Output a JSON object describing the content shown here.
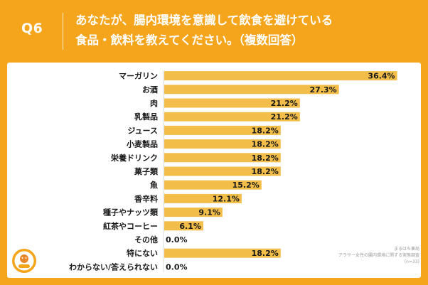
{
  "header": {
    "q_num": "Q6",
    "line1": "あなたが、腸内環境を意識して飲食を避けている",
    "line2": "食品・飲料を教えてください。（複数回答）"
  },
  "chart_data": {
    "type": "bar",
    "orientation": "horizontal",
    "categories": [
      "マーガリン",
      "お酒",
      "肉",
      "乳製品",
      "ジュース",
      "小麦製品",
      "栄養ドリンク",
      "菓子類",
      "魚",
      "香辛料",
      "種子やナッツ類",
      "紅茶やコーヒー",
      "その他",
      "特にない",
      "わからない/答えられない"
    ],
    "values": [
      36.4,
      27.3,
      21.2,
      21.2,
      18.2,
      18.2,
      18.2,
      18.2,
      15.2,
      12.1,
      9.1,
      6.1,
      0.0,
      18.2,
      0.0
    ],
    "value_labels": [
      "36.4%",
      "27.3%",
      "21.2%",
      "21.2%",
      "18.2%",
      "18.2%",
      "18.2%",
      "18.2%",
      "15.2%",
      "12.1%",
      "9.1%",
      "6.1%",
      "0.0%",
      "18.2%",
      "0.0%"
    ],
    "xlim": [
      0,
      40
    ],
    "bar_color": "#f2bd48",
    "grid": false,
    "legend": "none"
  },
  "source": {
    "line1": "まるはち薬局",
    "line2": "アラサー女性の腸内環境に関する実態調査",
    "line3": "(n=33)"
  },
  "colors": {
    "background": "#f5a51c",
    "bar": "#f2bd48",
    "text": "#1a1a1a"
  }
}
